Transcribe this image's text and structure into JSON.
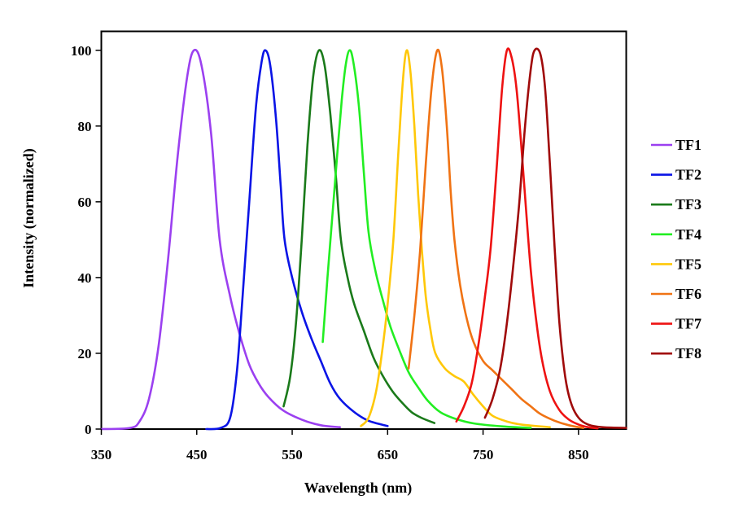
{
  "chart_data": {
    "type": "line",
    "title": "",
    "xlabel": "Wavelength (nm)",
    "ylabel": "Intensity (normalized)",
    "xlim": [
      350,
      900
    ],
    "ylim": [
      0,
      105
    ],
    "xticks": [
      350,
      450,
      550,
      650,
      750,
      850
    ],
    "yticks": [
      0,
      20,
      40,
      60,
      80,
      100
    ],
    "grid": false,
    "legend_position": "right",
    "series": [
      {
        "name": "TF1",
        "color": "#9b40f0",
        "x": [
          350,
          380,
          390,
          400,
          410,
          420,
          430,
          440,
          447,
          455,
          465,
          474,
          485,
          495,
          505,
          515,
          525,
          540,
          560,
          580,
          600
        ],
        "y": [
          0,
          0.3,
          2,
          8,
          22,
          45,
          72,
          93,
          100,
          96,
          78,
          50,
          35,
          25,
          17,
          12,
          8.5,
          5,
          2.5,
          1,
          0.5
        ]
      },
      {
        "name": "TF2",
        "color": "#0a14e6",
        "x": [
          460,
          475,
          485,
          492,
          498,
          505,
          512,
          518,
          522,
          527,
          533,
          538,
          542,
          550,
          560,
          570,
          580,
          590,
          600,
          615,
          630,
          650
        ],
        "y": [
          0,
          0.3,
          3,
          15,
          35,
          60,
          85,
          97,
          100,
          96,
          82,
          64,
          50,
          40,
          31,
          24,
          18,
          12,
          8,
          4.5,
          2.2,
          0.8
        ]
      },
      {
        "name": "TF3",
        "color": "#1a7a1a",
        "x": [
          541,
          548,
          554,
          560,
          566,
          572,
          578,
          584,
          590,
          596,
          601,
          608,
          615,
          625,
          635,
          645,
          655,
          665,
          675,
          685,
          699
        ],
        "y": [
          6,
          14,
          28,
          50,
          75,
          93,
          100,
          96,
          83,
          66,
          50,
          40,
          33,
          26,
          19,
          14,
          10,
          7,
          4.5,
          3,
          1.6
        ]
      },
      {
        "name": "TF4",
        "color": "#22ee22",
        "x": [
          582,
          587,
          592,
          597,
          602,
          606,
          610,
          614,
          620,
          625,
          630,
          637,
          645,
          653,
          662,
          672,
          682,
          692,
          705,
          720,
          740,
          770,
          800
        ],
        "y": [
          23,
          40,
          56,
          72,
          87,
          96,
          100,
          97,
          85,
          68,
          52,
          42,
          34,
          27,
          21,
          15,
          11,
          7.5,
          4.5,
          2.8,
          1.5,
          0.7,
          0.3
        ]
      },
      {
        "name": "TF5",
        "color": "#ffc808",
        "x": [
          622,
          630,
          638,
          645,
          650,
          656,
          661,
          666,
          670,
          674,
          678,
          682,
          686,
          690,
          695,
          700,
          710,
          720,
          730,
          740,
          750,
          760,
          775,
          790,
          820
        ],
        "y": [
          0.8,
          3,
          10,
          22,
          33,
          50,
          72,
          92,
          100,
          94,
          80,
          62,
          47,
          35,
          26,
          20,
          16,
          14,
          12.5,
          9,
          6,
          3.5,
          2,
          1.2,
          0.5
        ]
      },
      {
        "name": "TF6",
        "color": "#f07314",
        "x": [
          672,
          678,
          684,
          690,
          696,
          702,
          707,
          712,
          716,
          720,
          726,
          733,
          740,
          750,
          760,
          770,
          780,
          790,
          800,
          810,
          825,
          840,
          855
        ],
        "y": [
          16,
          30,
          47,
          70,
          90,
          100,
          95,
          80,
          63,
          50,
          38,
          29,
          23,
          18,
          15.5,
          13,
          10.5,
          8,
          6,
          4,
          2.2,
          1,
          0.3
        ]
      },
      {
        "name": "TF7",
        "color": "#ee1212",
        "x": [
          722,
          730,
          738,
          745,
          752,
          758,
          764,
          770,
          775,
          780,
          785,
          790,
          795,
          800,
          806,
          812,
          820,
          830,
          840,
          850,
          860,
          870
        ],
        "y": [
          2,
          6,
          12,
          22,
          35,
          48,
          68,
          90,
          100,
          98,
          90,
          75,
          58,
          42,
          28,
          18,
          10,
          5,
          2.5,
          1.2,
          0.5,
          0.2
        ]
      },
      {
        "name": "TF8",
        "color": "#a00a0a",
        "x": [
          752,
          760,
          768,
          775,
          782,
          788,
          794,
          800,
          804,
          810,
          815,
          820,
          825,
          830,
          836,
          842,
          850,
          860,
          875,
          900
        ],
        "y": [
          3,
          8,
          16,
          28,
          44,
          60,
          80,
          95,
          100,
          99,
          90,
          70,
          48,
          28,
          14,
          7,
          3,
          1.2,
          0.5,
          0.3
        ]
      }
    ]
  }
}
